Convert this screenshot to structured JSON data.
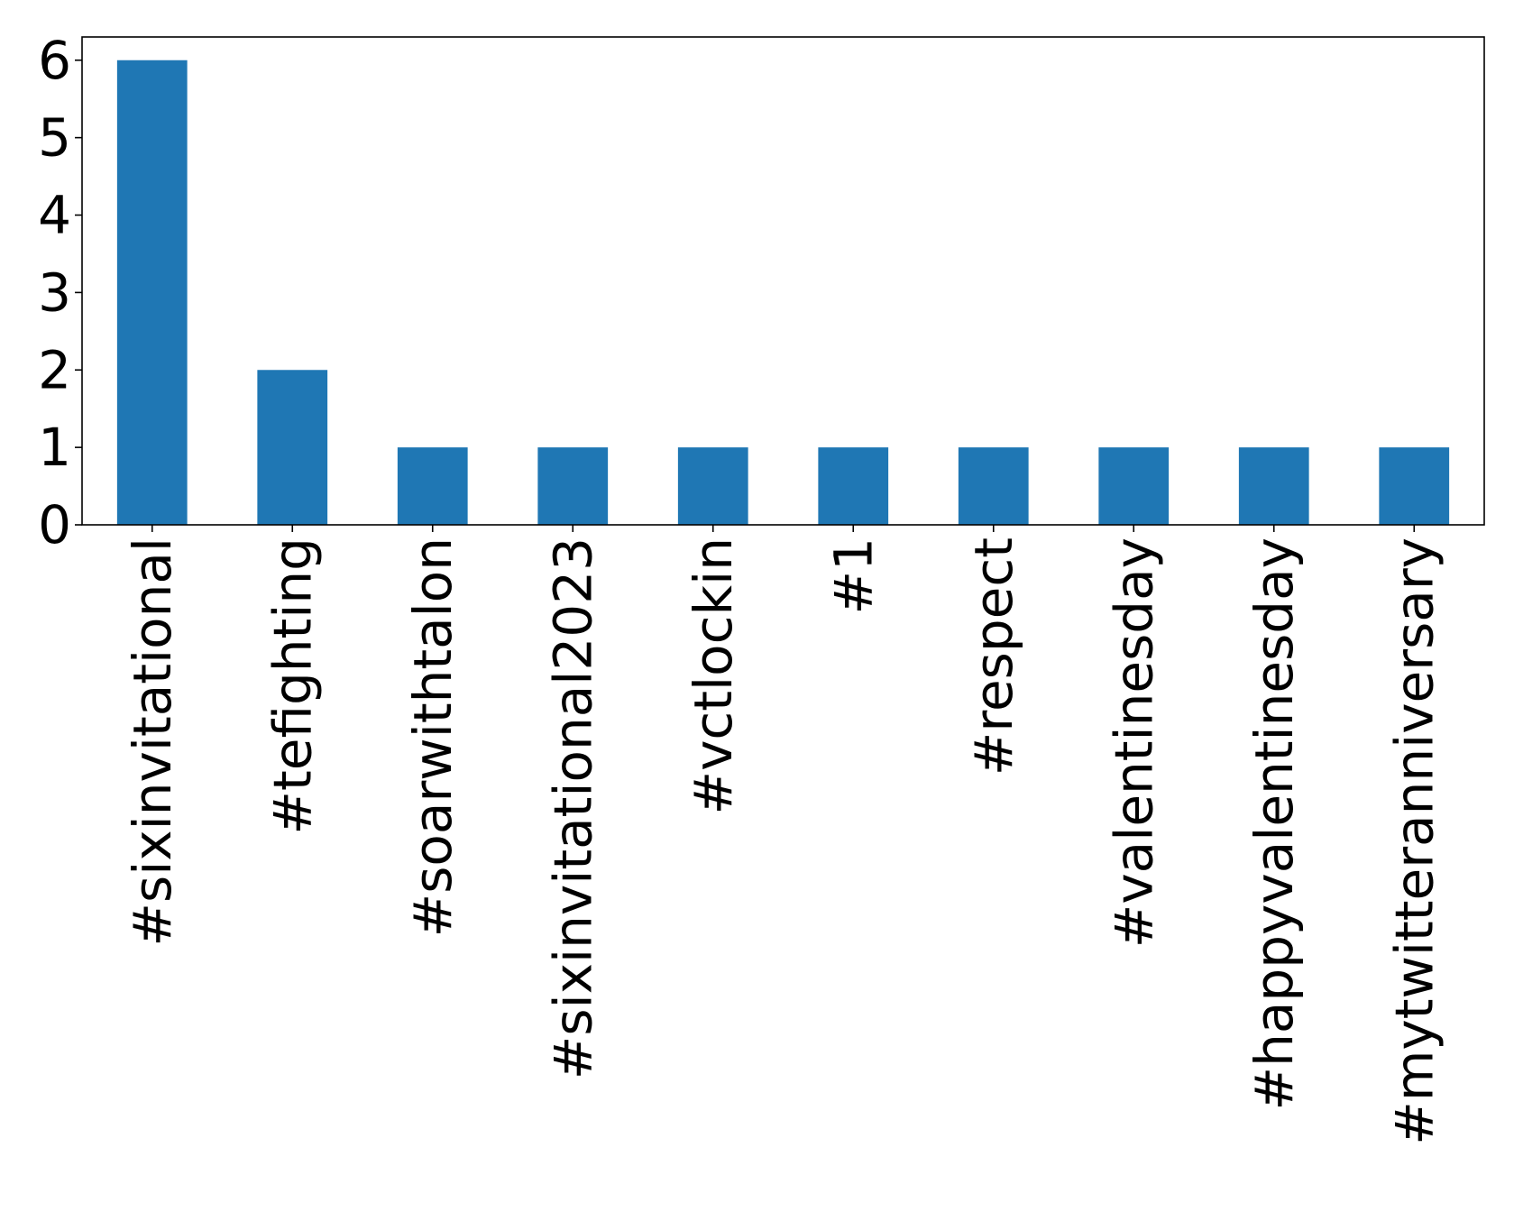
{
  "chart_data": {
    "type": "bar",
    "categories": [
      "#sixinvitational",
      "#tefighting",
      "#soarwithtalon",
      "#sixinvitational2023",
      "#vctlockin",
      "#1",
      "#respect",
      "#valentinesday",
      "#happyvalentinesday",
      "#mytwitteranniversary"
    ],
    "values": [
      6,
      2,
      1,
      1,
      1,
      1,
      1,
      1,
      1,
      1
    ],
    "title": "",
    "xlabel": "",
    "ylabel": "",
    "ylim": [
      0,
      6.3
    ],
    "yticks": [
      0,
      1,
      2,
      3,
      4,
      5,
      6
    ],
    "grid": false,
    "legend": "none",
    "bar_color": "#1f77b4",
    "axis_color": "#000000"
  }
}
